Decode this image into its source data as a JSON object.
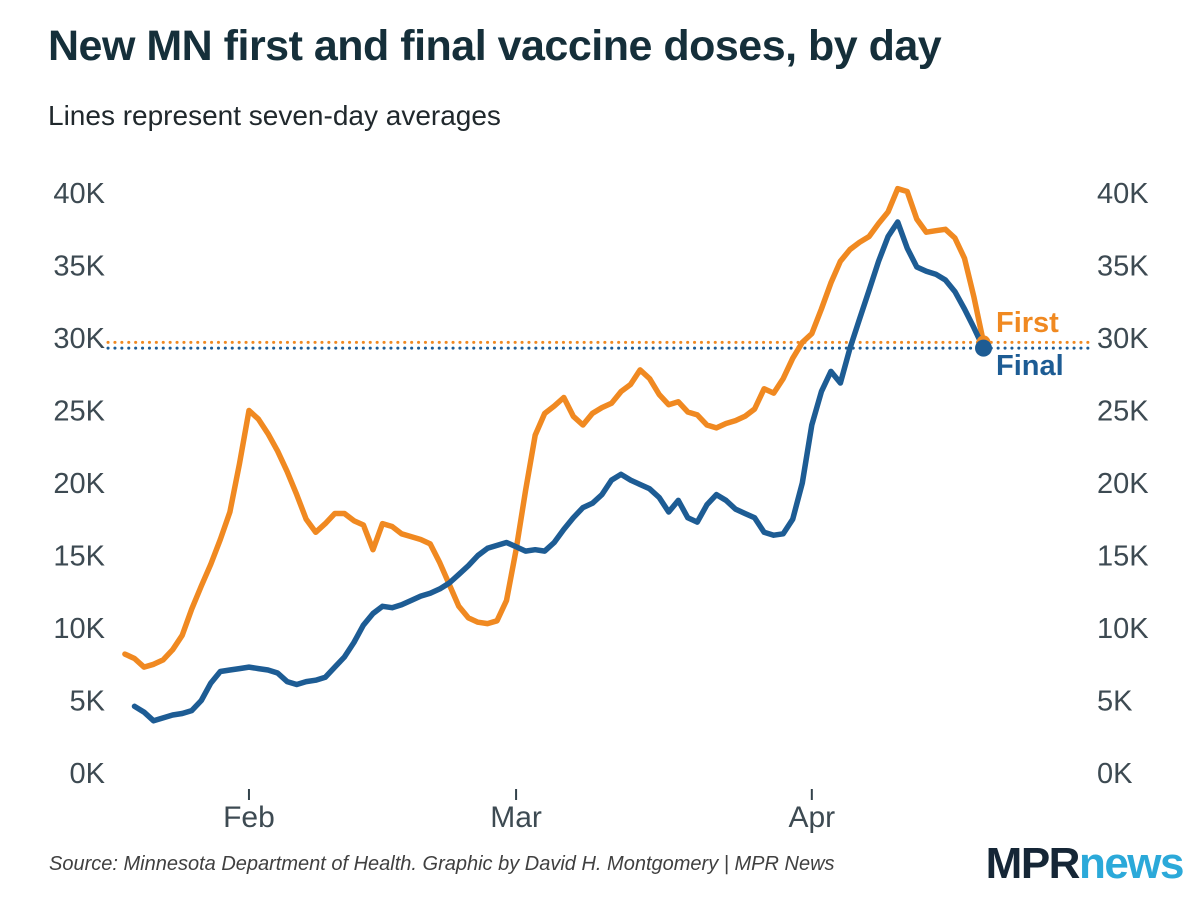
{
  "page": {
    "title": "New MN first and final vaccine doses, by day",
    "subtitle": "Lines represent seven-day averages"
  },
  "annotations": {
    "first_label": "First",
    "final_label": "Final"
  },
  "footer": {
    "source_text": "Source: Minnesota Department of Health. Graphic by David H. Montgomery | MPR News",
    "logo_mpr": "MPR",
    "logo_news": "news"
  },
  "colors": {
    "first_orange": "#f08921",
    "final_blue": "#1d5c94",
    "title_navy": "#152f3a",
    "axis_gray": "#3d4a52",
    "logo_navy": "#152636",
    "logo_cyan": "#2ba9d9"
  },
  "chart_data": {
    "type": "line",
    "title": "New MN first and final vaccine doses, by day",
    "subtitle": "Lines represent seven-day averages",
    "y_unit": "doses per day (thousands), seven-day average",
    "ylim": [
      0,
      42
    ],
    "grid": false,
    "legend_position": "end-of-line labels at right",
    "x_start_reference_date": "2021-01-18",
    "x_ticks": [
      {
        "label": "Feb",
        "day": 14
      },
      {
        "label": "Mar",
        "day": 42
      },
      {
        "label": "Apr",
        "day": 73
      }
    ],
    "y_ticks": [
      {
        "label": "0K",
        "value": 0
      },
      {
        "label": "5K",
        "value": 5
      },
      {
        "label": "10K",
        "value": 10
      },
      {
        "label": "15K",
        "value": 15
      },
      {
        "label": "20K",
        "value": 20
      },
      {
        "label": "25K",
        "value": 25
      },
      {
        "label": "30K",
        "value": 30
      },
      {
        "label": "35K",
        "value": 35
      },
      {
        "label": "40K",
        "value": 40
      }
    ],
    "y_axis_labels_on_both_sides": true,
    "reference_lines": [
      {
        "series": "First",
        "style": "dotted",
        "value": 29.7
      },
      {
        "series": "Final",
        "style": "dotted",
        "value": 29.3
      }
    ],
    "series": [
      {
        "name": "First",
        "color": "#f08921",
        "start_day": 1,
        "start_date": "2021-01-19",
        "end_date": "2021-04-19",
        "dot_radius": 7,
        "values": [
          8.2,
          7.9,
          7.3,
          7.5,
          7.8,
          8.5,
          9.5,
          11.3,
          12.9,
          14.4,
          16.1,
          18.0,
          21.3,
          25.0,
          24.4,
          23.4,
          22.2,
          20.8,
          19.2,
          17.5,
          16.6,
          17.2,
          17.9,
          17.9,
          17.4,
          17.1,
          15.4,
          17.2,
          17.0,
          16.5,
          16.3,
          16.1,
          15.8,
          14.5,
          13.0,
          11.5,
          10.7,
          10.4,
          10.3,
          10.5,
          11.9,
          15.4,
          19.5,
          23.3,
          24.8,
          25.3,
          25.9,
          24.6,
          24.0,
          24.8,
          25.2,
          25.5,
          26.3,
          26.8,
          27.8,
          27.2,
          26.1,
          25.4,
          25.6,
          24.9,
          24.7,
          24.0,
          23.8,
          24.1,
          24.3,
          24.6,
          25.1,
          26.5,
          26.2,
          27.2,
          28.6,
          29.7,
          30.3,
          32.0,
          33.8,
          35.3,
          36.1,
          36.6,
          37.0,
          37.9,
          38.7,
          40.3,
          40.1,
          38.2,
          37.3,
          37.4,
          37.5,
          36.9,
          35.5,
          32.8,
          29.7
        ]
      },
      {
        "name": "Final",
        "color": "#1d5c94",
        "start_day": 2,
        "start_date": "2021-01-20",
        "end_date": "2021-04-19",
        "dot_radius": 8.5,
        "values": [
          4.6,
          4.2,
          3.6,
          3.8,
          4.0,
          4.1,
          4.3,
          5.0,
          6.2,
          7.0,
          7.1,
          7.2,
          7.3,
          7.2,
          7.1,
          6.9,
          6.3,
          6.1,
          6.3,
          6.4,
          6.6,
          7.3,
          8.0,
          9.0,
          10.2,
          11.0,
          11.5,
          11.4,
          11.6,
          11.9,
          12.2,
          12.4,
          12.7,
          13.1,
          13.7,
          14.3,
          15.0,
          15.5,
          15.7,
          15.9,
          15.6,
          15.3,
          15.4,
          15.3,
          15.9,
          16.8,
          17.6,
          18.3,
          18.6,
          19.2,
          20.2,
          20.6,
          20.2,
          19.9,
          19.6,
          19.0,
          18.0,
          18.8,
          17.6,
          17.3,
          18.5,
          19.2,
          18.8,
          18.2,
          17.9,
          17.6,
          16.6,
          16.4,
          16.5,
          17.5,
          20.0,
          24.0,
          26.3,
          27.7,
          26.9,
          29.3,
          31.3,
          33.3,
          35.3,
          37.0,
          38.0,
          36.2,
          34.9,
          34.6,
          34.4,
          34.0,
          33.2,
          32.0,
          30.7,
          29.3
        ]
      }
    ]
  }
}
